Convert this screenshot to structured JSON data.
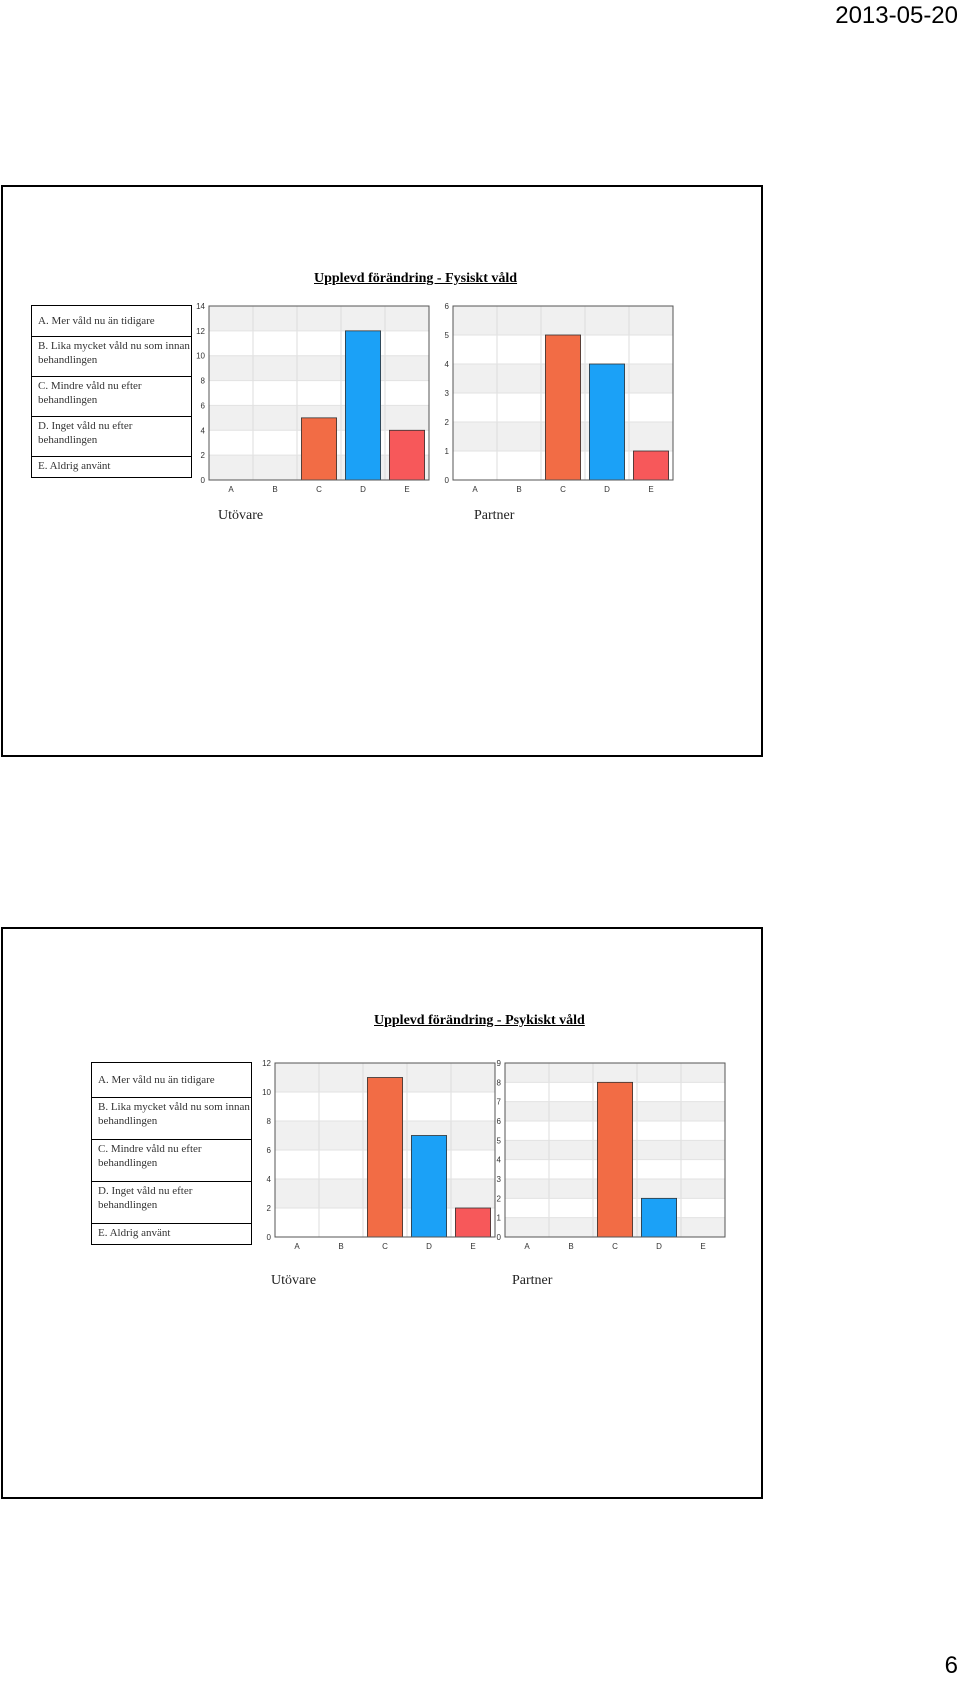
{
  "header": {
    "date": "2013-05-20"
  },
  "footer": {
    "page_number": "6"
  },
  "colors": {
    "C": "#f26c45",
    "D": "#1ba1f7",
    "E": "#f7585a",
    "grid_band": "#f0f0f0",
    "frame": "#555555"
  },
  "slides": [
    {
      "title": "Upplevd förändring - Fysiskt våld",
      "legend": [
        "A. Mer våld nu än tidigare",
        "B. Lika mycket våld nu som innan behandlingen",
        "C. Mindre våld nu efter behandlingen",
        "D. Inget våld nu efter behandlingen",
        "E. Aldrig använt"
      ],
      "chart_labels": [
        "Utövare",
        "Partner"
      ]
    },
    {
      "title": "Upplevd förändring - Psykiskt våld",
      "legend": [
        "A. Mer våld nu än tidigare",
        "B. Lika mycket våld nu som innan behandlingen",
        "C. Mindre våld nu efter behandlingen",
        "D. Inget våld nu efter behandlingen",
        "E. Aldrig använt"
      ],
      "chart_labels": [
        "Utövare",
        "Partner"
      ]
    }
  ],
  "chart_data": [
    {
      "type": "bar",
      "title": "",
      "categories": [
        "A",
        "B",
        "C",
        "D",
        "E"
      ],
      "values": [
        0,
        0,
        5,
        12,
        4
      ],
      "ylim": [
        0,
        14
      ],
      "yticks": [
        0,
        2,
        4,
        6,
        8,
        10,
        12,
        14
      ],
      "grid": true
    },
    {
      "type": "bar",
      "title": "",
      "categories": [
        "A",
        "B",
        "C",
        "D",
        "E"
      ],
      "values": [
        0,
        0,
        5,
        4,
        1
      ],
      "ylim": [
        0,
        6
      ],
      "yticks": [
        0,
        1,
        2,
        3,
        4,
        5,
        6
      ],
      "grid": true
    },
    {
      "type": "bar",
      "title": "",
      "categories": [
        "A",
        "B",
        "C",
        "D",
        "E"
      ],
      "values": [
        0,
        0,
        11,
        7,
        2
      ],
      "ylim": [
        0,
        12
      ],
      "yticks": [
        0,
        2,
        4,
        6,
        8,
        10,
        12
      ],
      "grid": true
    },
    {
      "type": "bar",
      "title": "",
      "categories": [
        "A",
        "B",
        "C",
        "D",
        "E"
      ],
      "values": [
        0,
        0,
        8,
        2,
        0
      ],
      "ylim": [
        0,
        9
      ],
      "yticks": [
        0,
        1,
        2,
        3,
        4,
        5,
        6,
        7,
        8,
        9
      ],
      "grid": true
    }
  ]
}
